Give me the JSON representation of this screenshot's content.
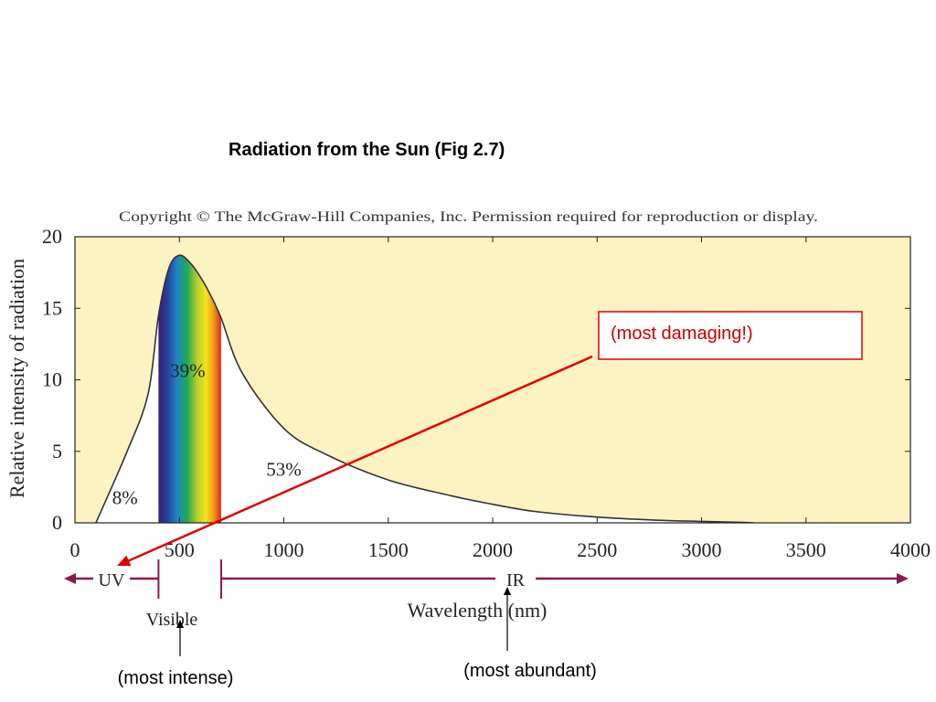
{
  "title": "Radiation from the Sun (Fig 2.7)",
  "copyright": "Copyright © The McGraw-Hill Companies, Inc. Permission required for reproduction or display.",
  "colors": {
    "plot_background": "#fdf2c2",
    "curve": "#333333",
    "band_arrow": "#8b1a4f",
    "callout_red": "#e00000",
    "under_curve": "#ffffff"
  },
  "chart_data": {
    "type": "area",
    "xlabel": "Wavelength (nm)",
    "ylabel": "Relative intensity of radiation",
    "xlim": [
      0,
      4000
    ],
    "ylim": [
      0,
      20
    ],
    "x_ticks": [
      0,
      500,
      1000,
      1500,
      2000,
      2500,
      3000,
      3500,
      4000
    ],
    "y_ticks": [
      0,
      5,
      10,
      15,
      20
    ],
    "grid": false,
    "series": [
      {
        "x": [
          100,
          250,
          350,
          400,
          450,
          500,
          550,
          600,
          650,
          700,
          800,
          1000,
          1200,
          1500,
          1800,
          2000,
          2200,
          2500,
          2800,
          3000,
          3200,
          3250
        ],
        "y": [
          0.0,
          5.0,
          9.0,
          14.5,
          17.8,
          18.7,
          18.2,
          17.2,
          15.9,
          14.3,
          10.5,
          6.6,
          4.8,
          3.0,
          1.9,
          1.3,
          0.8,
          0.4,
          0.18,
          0.1,
          0.03,
          0.0
        ]
      }
    ],
    "visible_band": [
      400,
      700
    ],
    "area_labels": [
      {
        "text": "8%",
        "x": 240,
        "y": 1.3
      },
      {
        "text": "39%",
        "x": 540,
        "y": 10.2
      },
      {
        "text": "53%",
        "x": 1000,
        "y": 3.3
      }
    ],
    "bands": {
      "uv_label": "UV",
      "ir_label": "IR",
      "visible_label": "Visible",
      "uv_end": 400,
      "visible_end": 700
    }
  },
  "callouts": {
    "damaging": "(most damaging!)",
    "intense": "(most intense)",
    "abundant": "(most abundant)"
  }
}
